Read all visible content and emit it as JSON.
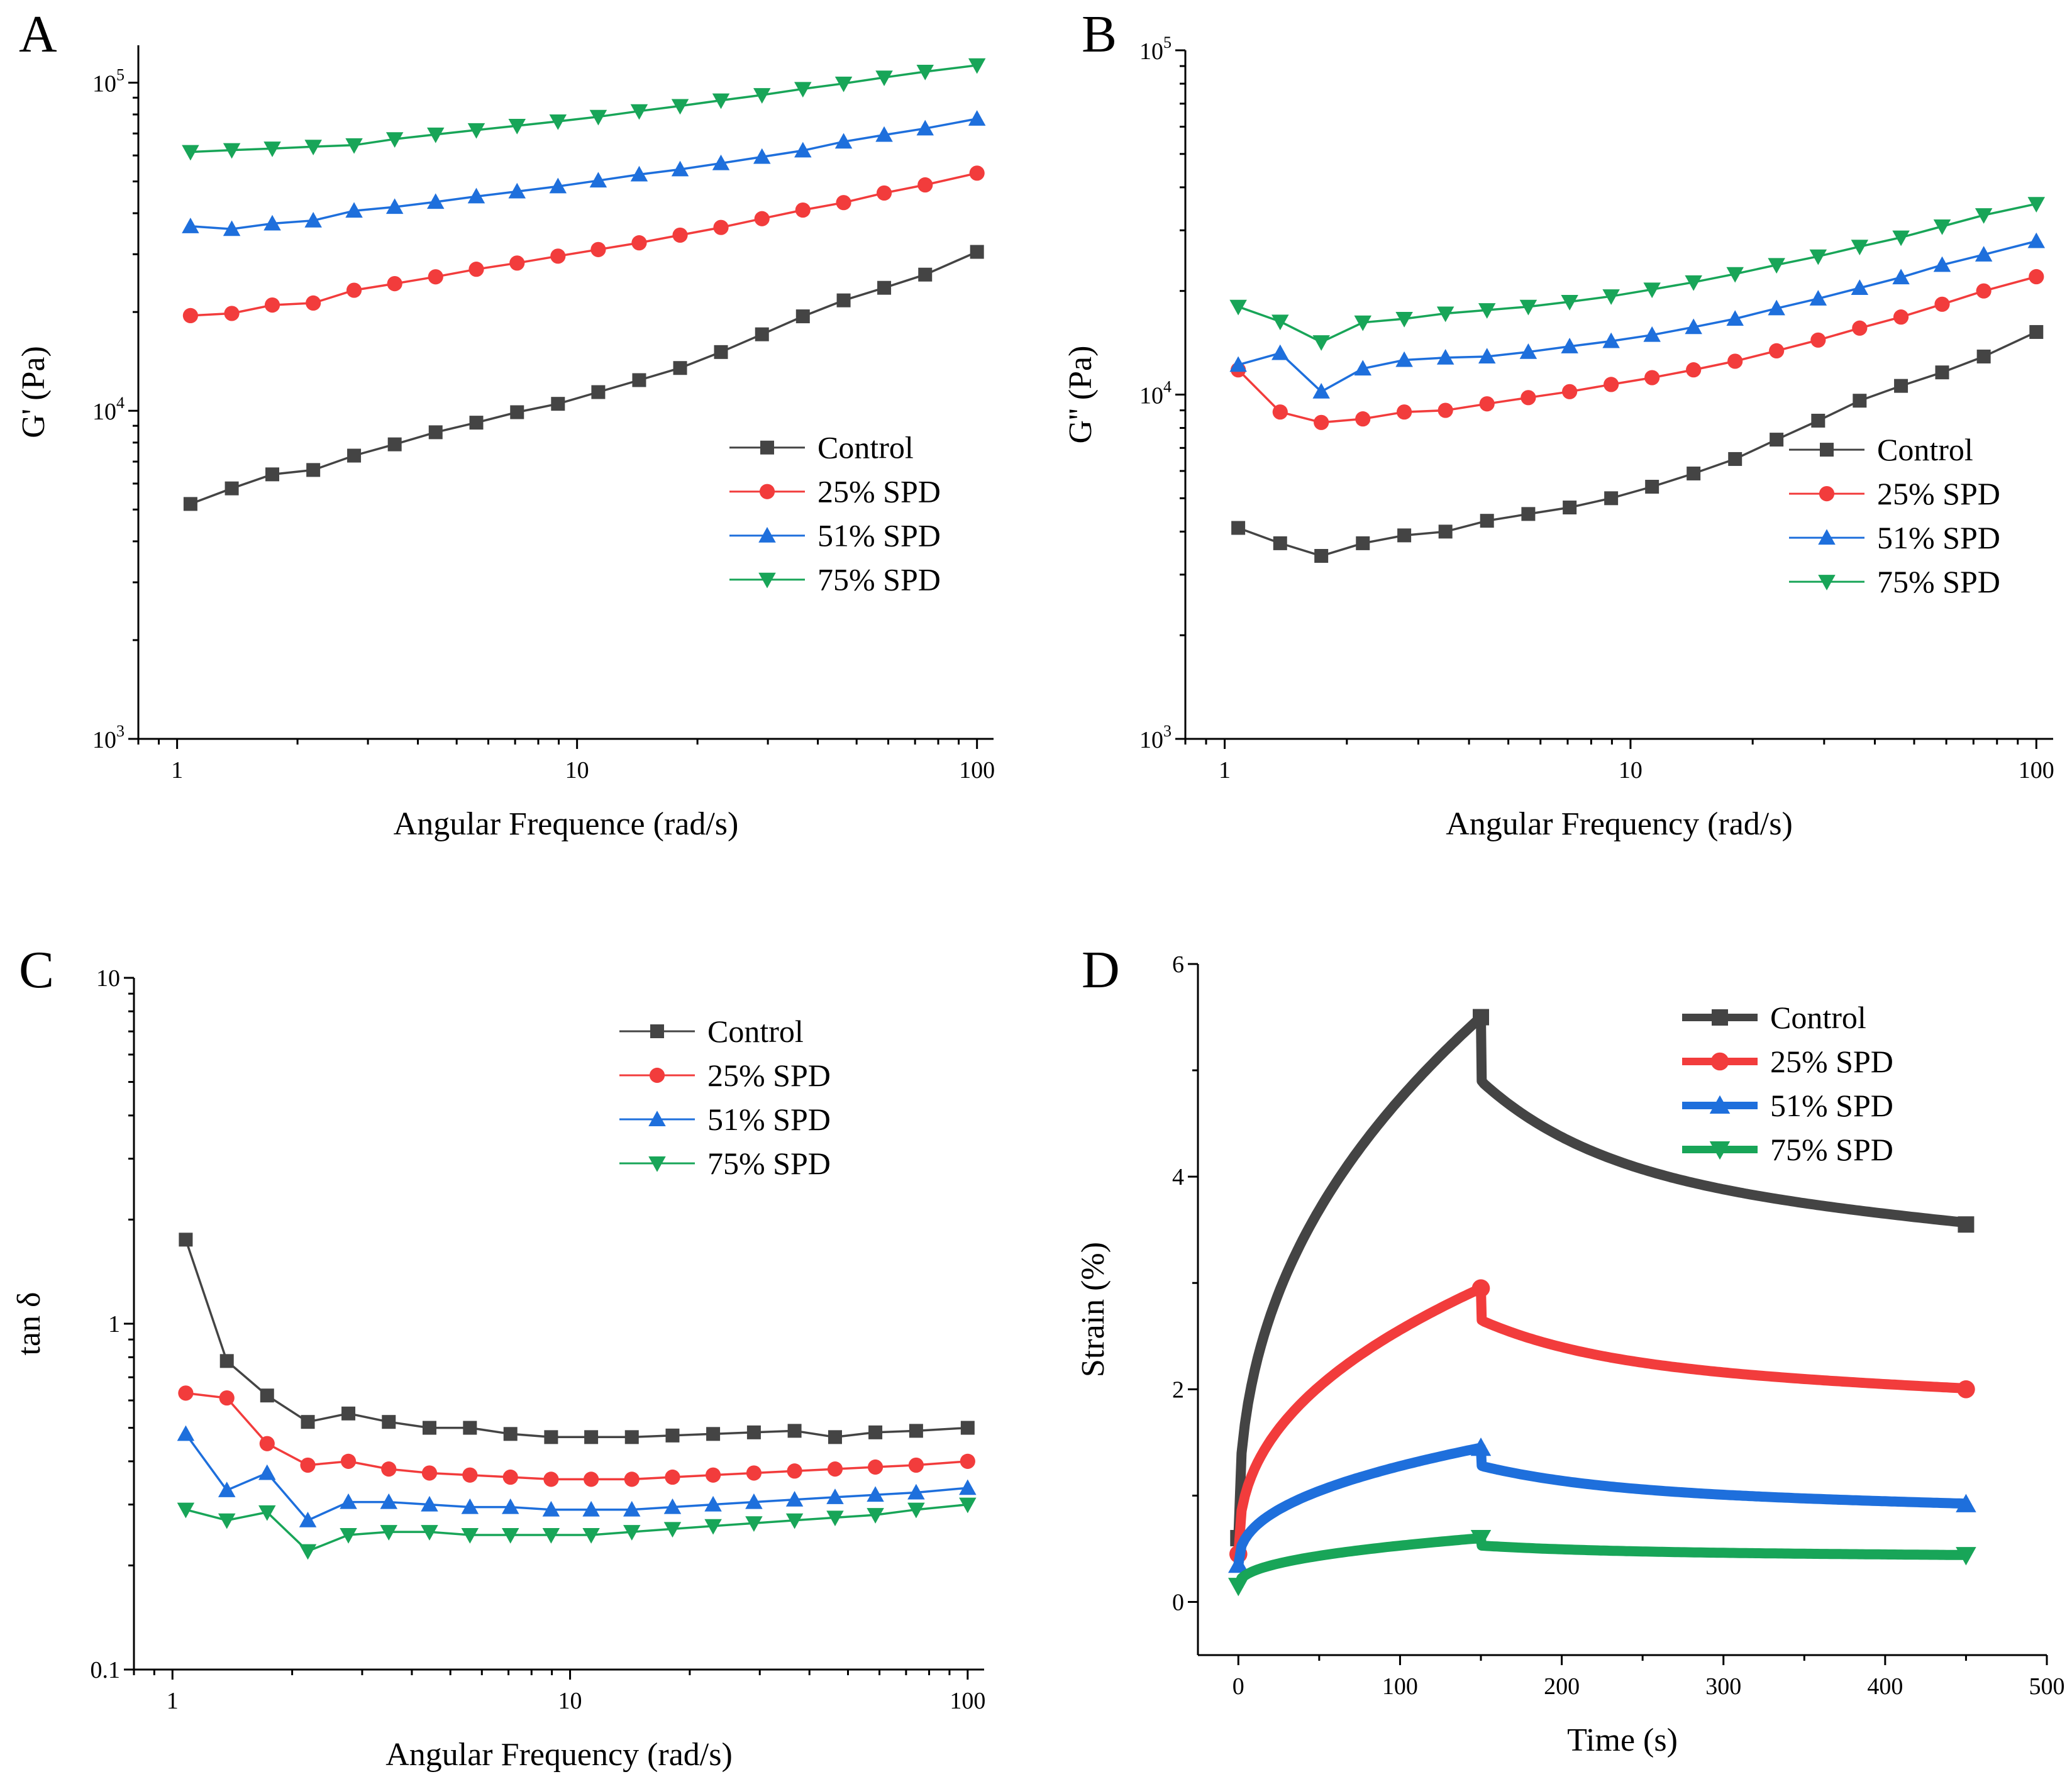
{
  "figure": {
    "panel_letters": [
      "A",
      "B",
      "C",
      "D"
    ]
  },
  "chart_data": [
    {
      "panel": "A",
      "type": "line",
      "scale": "log-log",
      "title": "",
      "xlabel": "Angular Frequence (rad/s)",
      "ylabel": "G' (Pa)",
      "xlim": [
        0.8,
        110
      ],
      "ylim": [
        1000,
        130000
      ],
      "x_ticks": [
        1,
        10,
        100
      ],
      "x_tick_labels": [
        "1",
        "10",
        "100"
      ],
      "y_ticks": [
        1000,
        10000,
        100000
      ],
      "y_tick_labels": [
        [
          "10",
          "3"
        ],
        [
          "10",
          "4"
        ],
        [
          "10",
          "5"
        ]
      ],
      "legend_position": "center-right",
      "x": [
        1.08,
        1.37,
        1.73,
        2.19,
        2.77,
        3.5,
        4.43,
        5.6,
        7.08,
        8.96,
        11.3,
        14.3,
        18.1,
        22.9,
        29,
        36.7,
        46.4,
        58.6,
        74.2,
        100
      ],
      "series": [
        {
          "name": "Control",
          "marker": "square",
          "color": "#444444",
          "values": [
            5200,
            5800,
            6400,
            6600,
            7300,
            7900,
            8600,
            9200,
            9900,
            10500,
            11400,
            12400,
            13500,
            15100,
            17100,
            19400,
            21700,
            23700,
            26000,
            30500
          ]
        },
        {
          "name": "25% SPD",
          "marker": "circle",
          "color": "#f23c3c",
          "values": [
            19500,
            19800,
            21000,
            21300,
            23300,
            24400,
            25600,
            27000,
            28200,
            29600,
            31000,
            32500,
            34300,
            36200,
            38500,
            40900,
            43100,
            46100,
            48800,
            53000
          ]
        },
        {
          "name": "51% SPD",
          "marker": "triangle-up",
          "color": "#1e6fdc",
          "values": [
            36500,
            35800,
            37200,
            38000,
            40700,
            41800,
            43300,
            45000,
            46600,
            48300,
            50300,
            52500,
            54400,
            56800,
            59400,
            62100,
            66100,
            69300,
            72500,
            77600
          ]
        },
        {
          "name": "75% SPD",
          "marker": "triangle-down",
          "color": "#18a558",
          "values": [
            61500,
            62300,
            63000,
            63800,
            64500,
            67300,
            69500,
            71700,
            73900,
            76200,
            78700,
            81900,
            84900,
            88300,
            91700,
            95700,
            99400,
            103700,
            108000,
            113000
          ]
        }
      ]
    },
    {
      "panel": "B",
      "type": "line",
      "scale": "log-log",
      "title": "",
      "xlabel": "Angular Frequency (rad/s)",
      "ylabel": "G'' (Pa)",
      "xlim": [
        0.8,
        110
      ],
      "ylim": [
        1000,
        100000
      ],
      "x_ticks": [
        1,
        10,
        100
      ],
      "x_tick_labels": [
        "1",
        "10",
        "100"
      ],
      "y_ticks": [
        1000,
        10000,
        100000
      ],
      "y_tick_labels": [
        [
          "10",
          "3"
        ],
        [
          "10",
          "4"
        ],
        [
          "10",
          "5"
        ]
      ],
      "legend_position": "center-right",
      "x": [
        1.08,
        1.37,
        1.73,
        2.19,
        2.77,
        3.5,
        4.43,
        5.6,
        7.08,
        8.96,
        11.3,
        14.3,
        18.1,
        22.9,
        29,
        36.7,
        46.4,
        58.6,
        74.2,
        100
      ],
      "series": [
        {
          "name": "Control",
          "marker": "square",
          "color": "#444444",
          "values": [
            4100,
            3700,
            3400,
            3700,
            3900,
            4000,
            4300,
            4500,
            4700,
            5000,
            5400,
            5900,
            6500,
            7400,
            8400,
            9600,
            10600,
            11600,
            12900,
            15200
          ]
        },
        {
          "name": "25% SPD",
          "marker": "circle",
          "color": "#f23c3c",
          "values": [
            11800,
            8900,
            8300,
            8500,
            8900,
            9000,
            9400,
            9800,
            10200,
            10700,
            11200,
            11800,
            12500,
            13400,
            14400,
            15600,
            16800,
            18300,
            20000,
            22000
          ]
        },
        {
          "name": "51% SPD",
          "marker": "triangle-up",
          "color": "#1e6fdc",
          "values": [
            12200,
            13200,
            10200,
            11900,
            12600,
            12800,
            12900,
            13300,
            13800,
            14300,
            14900,
            15700,
            16600,
            17800,
            19000,
            20400,
            21900,
            23800,
            25500,
            27900
          ]
        },
        {
          "name": "75% SPD",
          "marker": "triangle-down",
          "color": "#18a558",
          "values": [
            18000,
            16300,
            14200,
            16200,
            16600,
            17200,
            17600,
            18000,
            18600,
            19300,
            20200,
            21200,
            22400,
            23800,
            25200,
            26900,
            28600,
            30800,
            33200,
            35800
          ]
        }
      ]
    },
    {
      "panel": "C",
      "type": "line",
      "scale": "log-log",
      "title": "",
      "xlabel": "Angular Frequency (rad/s)",
      "ylabel": "tan δ",
      "xlim": [
        0.8,
        110
      ],
      "ylim": [
        0.1,
        10
      ],
      "x_ticks": [
        1,
        10,
        100
      ],
      "x_tick_labels": [
        "1",
        "10",
        "100"
      ],
      "y_ticks": [
        0.1,
        1,
        10
      ],
      "y_tick_labels": [
        "0.1",
        "1",
        "10"
      ],
      "legend_position": "top-right",
      "x": [
        1.08,
        1.37,
        1.73,
        2.19,
        2.77,
        3.5,
        4.43,
        5.6,
        7.08,
        8.96,
        11.3,
        14.3,
        18.1,
        22.9,
        29,
        36.7,
        46.4,
        58.6,
        74.2,
        100
      ],
      "series": [
        {
          "name": "Control",
          "marker": "square",
          "color": "#444444",
          "values": [
            1.75,
            0.78,
            0.62,
            0.52,
            0.55,
            0.52,
            0.5,
            0.5,
            0.48,
            0.47,
            0.47,
            0.47,
            0.475,
            0.48,
            0.485,
            0.49,
            0.47,
            0.485,
            0.49,
            0.5
          ]
        },
        {
          "name": "25% SPD",
          "marker": "circle",
          "color": "#f23c3c",
          "values": [
            0.63,
            0.61,
            0.45,
            0.39,
            0.4,
            0.38,
            0.37,
            0.365,
            0.36,
            0.355,
            0.355,
            0.355,
            0.36,
            0.365,
            0.37,
            0.375,
            0.38,
            0.385,
            0.39,
            0.4
          ]
        },
        {
          "name": "51% SPD",
          "marker": "triangle-up",
          "color": "#1e6fdc",
          "values": [
            0.48,
            0.33,
            0.37,
            0.27,
            0.305,
            0.305,
            0.3,
            0.295,
            0.295,
            0.29,
            0.29,
            0.29,
            0.295,
            0.3,
            0.305,
            0.31,
            0.315,
            0.32,
            0.325,
            0.335
          ]
        },
        {
          "name": "75% SPD",
          "marker": "triangle-down",
          "color": "#18a558",
          "values": [
            0.29,
            0.27,
            0.285,
            0.22,
            0.245,
            0.25,
            0.25,
            0.245,
            0.245,
            0.245,
            0.245,
            0.25,
            0.255,
            0.26,
            0.265,
            0.27,
            0.275,
            0.28,
            0.29,
            0.3
          ]
        }
      ]
    },
    {
      "panel": "D",
      "type": "line",
      "scale": "linear",
      "title": "",
      "xlabel": "Time (s)",
      "ylabel": "Strain (%)",
      "xlim": [
        -25,
        500
      ],
      "ylim": [
        -0.5,
        6
      ],
      "x_ticks": [
        0,
        100,
        200,
        300,
        400,
        500
      ],
      "x_tick_labels": [
        "0",
        "100",
        "200",
        "300",
        "400",
        "500"
      ],
      "y_ticks": [
        0,
        2,
        4,
        6
      ],
      "y_tick_labels": [
        "0",
        "2",
        "4",
        "6"
      ],
      "legend_position": "top-right",
      "note": "Creep (0–150 s) and recovery (150–450 s) curves; dense markers form thick lines",
      "series": [
        {
          "name": "Control",
          "marker": "square",
          "color": "#444444",
          "creep_start": 0.6,
          "peak": 5.5,
          "recovery_drop": 4.9,
          "end": 3.55
        },
        {
          "name": "25% SPD",
          "marker": "circle",
          "color": "#f23c3c",
          "creep_start": 0.45,
          "peak": 2.95,
          "recovery_drop": 2.65,
          "end": 2.0
        },
        {
          "name": "51% SPD",
          "marker": "triangle-up",
          "color": "#1e6fdc",
          "creep_start": 0.35,
          "peak": 1.45,
          "recovery_drop": 1.28,
          "end": 0.92
        },
        {
          "name": "75% SPD",
          "marker": "triangle-down",
          "color": "#18a558",
          "creep_start": 0.15,
          "peak": 0.6,
          "recovery_drop": 0.53,
          "end": 0.44
        }
      ]
    }
  ]
}
